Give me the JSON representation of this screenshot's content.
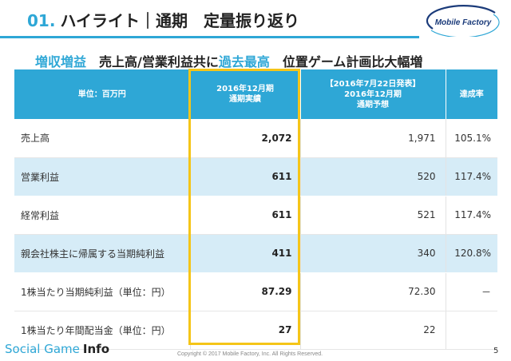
{
  "header": {
    "number": "01.",
    "title": "ハイライト｜通期　定量振り返り"
  },
  "logo": {
    "text": "Mobile Factory",
    "color": "#1b3b7a"
  },
  "subtitle": {
    "part1": "増収増益",
    "part2": "　売上高/営業利益共に",
    "part3": "過去最高",
    "part4": "　位置ゲーム計画比大幅増"
  },
  "table": {
    "headers": {
      "unit": "単位：百万円",
      "actual_line1": "2016年12月期",
      "actual_line2": "通期実績",
      "forecast_line1": "【2016年7月22日発表】",
      "forecast_line2": "2016年12月期",
      "forecast_line3": "通期予想",
      "rate": "達成率"
    },
    "rows": [
      {
        "label": "売上高",
        "actual": "2,072",
        "forecast": "1,971",
        "rate": "105.1%"
      },
      {
        "label": "営業利益",
        "actual": "611",
        "forecast": "520",
        "rate": "117.4%"
      },
      {
        "label": "経常利益",
        "actual": "611",
        "forecast": "521",
        "rate": "117.4%"
      },
      {
        "label": "親会社株主に帰属する当期純利益",
        "actual": "411",
        "forecast": "340",
        "rate": "120.8%"
      },
      {
        "label": "1株当たり当期純利益（単位：円）",
        "actual": "87.29",
        "forecast": "72.30",
        "rate": "－"
      },
      {
        "label": "1株当たり年間配当金（単位：円）",
        "actual": "27",
        "forecast": "22",
        "rate": ""
      }
    ]
  },
  "footer": {
    "brand_social": "Social Game",
    "brand_info": "Info",
    "copyright": "Copyright © 2017 Mobile Factory, Inc. All Rights Reserved.",
    "page": "5"
  },
  "colors": {
    "accent": "#2ea7d6",
    "row_alt": "#d6ecf7",
    "highlight": "#f5c518"
  }
}
